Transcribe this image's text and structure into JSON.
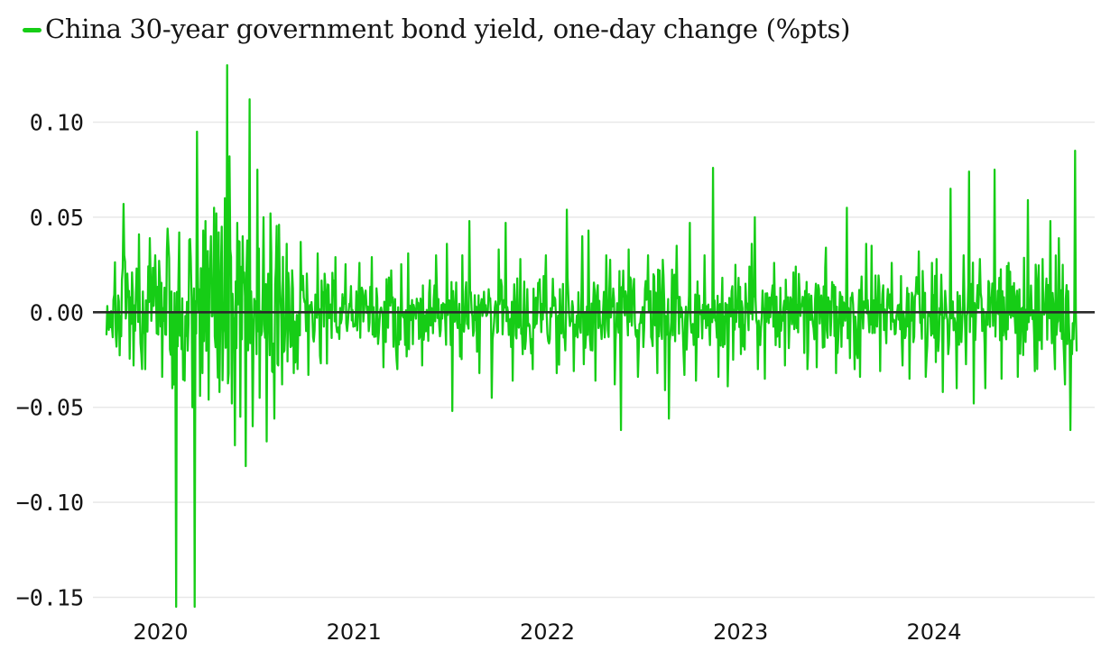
{
  "chart_data": {
    "type": "line",
    "title": "China 30-year government bond yield, one-day change (%pts)",
    "legend_position": "top-left",
    "line_color": "#16cd16",
    "zero_line_color": "#2b2b2b",
    "grid_color": "#e8e8e8",
    "text_color": "#141414",
    "background": "#ffffff",
    "grid": true,
    "ylim": [
      -0.17,
      0.145
    ],
    "yticks": [
      {
        "value": 0.1,
        "label": "0.10"
      },
      {
        "value": 0.05,
        "label": "0.05"
      },
      {
        "value": 0.0,
        "label": "0.00"
      },
      {
        "value": -0.05,
        "label": "−0.05"
      },
      {
        "value": -0.1,
        "label": "−0.10"
      },
      {
        "value": -0.15,
        "label": "−0.15"
      }
    ],
    "xticks": [
      {
        "label": "2020",
        "t": 0.0558
      },
      {
        "label": "2021",
        "t": 0.2551
      },
      {
        "label": "2022",
        "t": 0.4544
      },
      {
        "label": "2023",
        "t": 0.6537
      },
      {
        "label": "2024",
        "t": 0.853
      }
    ],
    "x_span_years": [
      "late 2019",
      "late 2024"
    ],
    "n_points": 1255,
    "seed": 7,
    "noise_envelope": [
      [
        0.0,
        0.06,
        0.013
      ],
      [
        0.06,
        0.1,
        0.02
      ],
      [
        0.1,
        0.18,
        0.022
      ],
      [
        0.18,
        0.24,
        0.013
      ],
      [
        0.24,
        0.45,
        0.011
      ],
      [
        0.45,
        0.58,
        0.012
      ],
      [
        0.58,
        0.66,
        0.011
      ],
      [
        0.66,
        0.85,
        0.0105
      ],
      [
        0.85,
        1.0,
        0.013
      ]
    ],
    "spikes": [
      [
        0.0177,
        0.057
      ],
      [
        0.0279,
        -0.028
      ],
      [
        0.0335,
        0.041
      ],
      [
        0.04,
        -0.03
      ],
      [
        0.0447,
        0.039
      ],
      [
        0.0502,
        0.03
      ],
      [
        0.0577,
        -0.034
      ],
      [
        0.0633,
        0.044
      ],
      [
        0.0679,
        -0.04
      ],
      [
        0.0716,
        -0.155
      ],
      [
        0.0753,
        0.042
      ],
      [
        0.0809,
        -0.036
      ],
      [
        0.0856,
        0.038
      ],
      [
        0.0884,
        -0.05
      ],
      [
        0.0912,
        -0.155
      ],
      [
        0.093,
        0.095
      ],
      [
        0.0967,
        -0.044
      ],
      [
        0.0995,
        0.043
      ],
      [
        0.1023,
        0.048
      ],
      [
        0.1051,
        -0.046
      ],
      [
        0.1079,
        0.04
      ],
      [
        0.1107,
        0.055
      ],
      [
        0.1135,
        0.052
      ],
      [
        0.1163,
        -0.042
      ],
      [
        0.1191,
        0.045
      ],
      [
        0.1219,
        0.06
      ],
      [
        0.1247,
        0.13
      ],
      [
        0.1265,
        0.082
      ],
      [
        0.1293,
        -0.048
      ],
      [
        0.1321,
        -0.07
      ],
      [
        0.1349,
        0.047
      ],
      [
        0.1377,
        -0.055
      ],
      [
        0.1405,
        0.04
      ],
      [
        0.1433,
        -0.081
      ],
      [
        0.1479,
        0.112
      ],
      [
        0.1507,
        -0.06
      ],
      [
        0.1553,
        0.075
      ],
      [
        0.1581,
        -0.045
      ],
      [
        0.1619,
        0.05
      ],
      [
        0.1647,
        -0.068
      ],
      [
        0.1693,
        0.052
      ],
      [
        0.173,
        -0.056
      ],
      [
        0.1777,
        0.046
      ],
      [
        0.1814,
        -0.038
      ],
      [
        0.186,
        0.036
      ],
      [
        0.1926,
        -0.032
      ],
      [
        0.2,
        0.037
      ],
      [
        0.2084,
        -0.033
      ],
      [
        0.2177,
        0.031
      ],
      [
        0.227,
        -0.027
      ],
      [
        0.2363,
        0.029
      ],
      [
        0.2605,
        0.026
      ],
      [
        0.2735,
        0.029
      ],
      [
        0.2856,
        -0.029
      ],
      [
        0.2995,
        -0.03
      ],
      [
        0.3107,
        0.031
      ],
      [
        0.3256,
        -0.028
      ],
      [
        0.3395,
        0.03
      ],
      [
        0.3507,
        0.036
      ],
      [
        0.3563,
        -0.052
      ],
      [
        0.3665,
        0.03
      ],
      [
        0.374,
        0.048
      ],
      [
        0.3842,
        -0.032
      ],
      [
        0.3972,
        -0.045
      ],
      [
        0.4047,
        0.033
      ],
      [
        0.4112,
        0.047
      ],
      [
        0.4186,
        -0.036
      ],
      [
        0.427,
        0.028
      ],
      [
        0.4391,
        -0.03
      ],
      [
        0.453,
        0.03
      ],
      [
        0.4642,
        -0.032
      ],
      [
        0.4744,
        0.054
      ],
      [
        0.4819,
        -0.031
      ],
      [
        0.4902,
        0.04
      ],
      [
        0.4967,
        0.043
      ],
      [
        0.5042,
        -0.036
      ],
      [
        0.5153,
        0.03
      ],
      [
        0.5237,
        -0.038
      ],
      [
        0.5302,
        -0.062
      ],
      [
        0.5386,
        0.033
      ],
      [
        0.5479,
        -0.034
      ],
      [
        0.5581,
        0.03
      ],
      [
        0.5674,
        -0.032
      ],
      [
        0.5758,
        -0.041
      ],
      [
        0.5795,
        -0.056
      ],
      [
        0.5879,
        0.035
      ],
      [
        0.5953,
        -0.033
      ],
      [
        0.6009,
        0.047
      ],
      [
        0.6074,
        -0.036
      ],
      [
        0.6167,
        0.03
      ],
      [
        0.6251,
        0.076
      ],
      [
        0.6307,
        -0.034
      ],
      [
        0.64,
        -0.039
      ],
      [
        0.6484,
        0.025
      ],
      [
        0.6586,
        0.015
      ],
      [
        0.6623,
        0.024
      ],
      [
        0.6651,
        0.036
      ],
      [
        0.6679,
        0.05
      ],
      [
        0.6716,
        -0.03
      ],
      [
        0.679,
        -0.035
      ],
      [
        0.6884,
        0.026
      ],
      [
        0.6995,
        -0.028
      ],
      [
        0.7107,
        0.024
      ],
      [
        0.7228,
        -0.03
      ],
      [
        0.7321,
        -0.029
      ],
      [
        0.7414,
        0.034
      ],
      [
        0.7516,
        -0.032
      ],
      [
        0.7628,
        0.055
      ],
      [
        0.7712,
        -0.03
      ],
      [
        0.7767,
        -0.034
      ],
      [
        0.7833,
        0.036
      ],
      [
        0.7888,
        0.035
      ],
      [
        0.7972,
        -0.031
      ],
      [
        0.8093,
        0.026
      ],
      [
        0.8205,
        -0.028
      ],
      [
        0.8279,
        -0.035
      ],
      [
        0.8372,
        0.032
      ],
      [
        0.8447,
        -0.034
      ],
      [
        0.8558,
        0.028
      ],
      [
        0.8623,
        -0.042
      ],
      [
        0.8698,
        0.065
      ],
      [
        0.8763,
        -0.04
      ],
      [
        0.8837,
        0.03
      ],
      [
        0.8893,
        0.074
      ],
      [
        0.894,
        -0.048
      ],
      [
        0.9005,
        0.028
      ],
      [
        0.906,
        -0.04
      ],
      [
        0.9153,
        0.075
      ],
      [
        0.9228,
        -0.035
      ],
      [
        0.9302,
        0.026
      ],
      [
        0.9395,
        -0.034
      ],
      [
        0.9498,
        0.059
      ],
      [
        0.9572,
        -0.031
      ],
      [
        0.9647,
        0.028
      ],
      [
        0.973,
        0.048
      ],
      [
        0.9777,
        -0.03
      ],
      [
        0.9814,
        0.039
      ],
      [
        0.9879,
        -0.038
      ],
      [
        0.9935,
        -0.062
      ],
      [
        0.9981,
        0.085
      ]
    ]
  }
}
